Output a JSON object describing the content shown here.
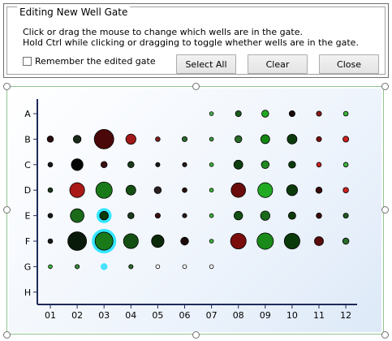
{
  "dialog": {
    "title": "Editing New Well Gate",
    "line1": "Click or drag the mouse to change which wells are in the gate.",
    "line2": "Hold Ctrl while clicking or dragging to toggle whether wells are in the gate.",
    "remember_label": "Remember the edited gate",
    "remember_checked": false,
    "select_all_label": "Select All",
    "clear_label": "Clear",
    "close_label": "Close"
  },
  "plate": {
    "rows": [
      "A",
      "B",
      "C",
      "D",
      "E",
      "F",
      "G",
      "H"
    ],
    "cols": [
      "01",
      "02",
      "03",
      "04",
      "05",
      "06",
      "07",
      "08",
      "09",
      "10",
      "11",
      "12"
    ]
  },
  "chart_data": {
    "type": "scatter",
    "title": "",
    "xlabel": "",
    "ylabel": "",
    "x_categories": [
      "01",
      "02",
      "03",
      "04",
      "05",
      "06",
      "07",
      "08",
      "09",
      "10",
      "11",
      "12"
    ],
    "y_categories": [
      "A",
      "B",
      "C",
      "D",
      "E",
      "F",
      "G",
      "H"
    ],
    "wells": [
      {
        "row": "A",
        "col": "07",
        "size": 1,
        "color": "#4caf50"
      },
      {
        "row": "A",
        "col": "08",
        "size": 1.5,
        "color": "#1e5a1e"
      },
      {
        "row": "A",
        "col": "09",
        "size": 1.8,
        "color": "#22aa22"
      },
      {
        "row": "A",
        "col": "10",
        "size": 1.5,
        "color": "#1a0a0a"
      },
      {
        "row": "A",
        "col": "11",
        "size": 1.3,
        "color": "#8b1a1a"
      },
      {
        "row": "A",
        "col": "12",
        "size": 1.2,
        "color": "#3cb43c"
      },
      {
        "row": "B",
        "col": "01",
        "size": 1.6,
        "color": "#2a0d0d"
      },
      {
        "row": "B",
        "col": "02",
        "size": 2,
        "color": "#1a2a1a"
      },
      {
        "row": "B",
        "col": "03",
        "size": 5,
        "color": "#4a0808"
      },
      {
        "row": "B",
        "col": "04",
        "size": 2.6,
        "color": "#a01818"
      },
      {
        "row": "B",
        "col": "05",
        "size": 1.2,
        "color": "#7a2020"
      },
      {
        "row": "B",
        "col": "06",
        "size": 1.3,
        "color": "#2a6a2a"
      },
      {
        "row": "B",
        "col": "07",
        "size": 1,
        "color": "#3c9a3c"
      },
      {
        "row": "B",
        "col": "08",
        "size": 1.8,
        "color": "#2a6a2a"
      },
      {
        "row": "B",
        "col": "09",
        "size": 2.3,
        "color": "#118811"
      },
      {
        "row": "B",
        "col": "10",
        "size": 2.5,
        "color": "#0c3a0c"
      },
      {
        "row": "B",
        "col": "11",
        "size": 1.3,
        "color": "#7a1010"
      },
      {
        "row": "B",
        "col": "12",
        "size": 1.5,
        "color": "#cc2020"
      },
      {
        "row": "C",
        "col": "01",
        "size": 1.2,
        "color": "#1a1a1a"
      },
      {
        "row": "C",
        "col": "02",
        "size": 3,
        "color": "#050505"
      },
      {
        "row": "C",
        "col": "03",
        "size": 1.6,
        "color": "#3a1010"
      },
      {
        "row": "C",
        "col": "04",
        "size": 1.6,
        "color": "#1a3a1a"
      },
      {
        "row": "C",
        "col": "05",
        "size": 1.1,
        "color": "#1a1a1a"
      },
      {
        "row": "C",
        "col": "06",
        "size": 1.1,
        "color": "#2a1a1a"
      },
      {
        "row": "C",
        "col": "07",
        "size": 1,
        "color": "#3cb43c"
      },
      {
        "row": "C",
        "col": "08",
        "size": 2.3,
        "color": "#104010"
      },
      {
        "row": "C",
        "col": "09",
        "size": 2,
        "color": "#228822"
      },
      {
        "row": "C",
        "col": "10",
        "size": 1.8,
        "color": "#0c3a0c"
      },
      {
        "row": "C",
        "col": "11",
        "size": 1.2,
        "color": "#cc2020"
      },
      {
        "row": "C",
        "col": "12",
        "size": 1.2,
        "color": "#3cb43c"
      },
      {
        "row": "D",
        "col": "01",
        "size": 1.2,
        "color": "#1a3a1a"
      },
      {
        "row": "D",
        "col": "02",
        "size": 3.8,
        "color": "#aa1818"
      },
      {
        "row": "D",
        "col": "03",
        "size": 4.2,
        "color": "#1a7a1a"
      },
      {
        "row": "D",
        "col": "04",
        "size": 2.5,
        "color": "#145014"
      },
      {
        "row": "D",
        "col": "05",
        "size": 1.8,
        "color": "#2a2020"
      },
      {
        "row": "D",
        "col": "06",
        "size": 1.2,
        "color": "#2a1010"
      },
      {
        "row": "D",
        "col": "07",
        "size": 1,
        "color": "#3cb43c"
      },
      {
        "row": "D",
        "col": "08",
        "size": 3.7,
        "color": "#6a0c0c"
      },
      {
        "row": "D",
        "col": "09",
        "size": 3.8,
        "color": "#22aa22"
      },
      {
        "row": "D",
        "col": "10",
        "size": 2.8,
        "color": "#0c3a0c"
      },
      {
        "row": "D",
        "col": "11",
        "size": 1.6,
        "color": "#3a0a0a"
      },
      {
        "row": "D",
        "col": "12",
        "size": 1.4,
        "color": "#cc2020"
      },
      {
        "row": "E",
        "col": "01",
        "size": 1.2,
        "color": "#1a1a1a"
      },
      {
        "row": "E",
        "col": "02",
        "size": 3.5,
        "color": "#1a6a1a"
      },
      {
        "row": "E",
        "col": "03",
        "size": 2.2,
        "color": "#0a3a0a",
        "ring": true
      },
      {
        "row": "E",
        "col": "04",
        "size": 1.6,
        "color": "#1a3a1a"
      },
      {
        "row": "E",
        "col": "05",
        "size": 1.3,
        "color": "#3a1010"
      },
      {
        "row": "E",
        "col": "06",
        "size": 1.1,
        "color": "#2a1a1a"
      },
      {
        "row": "E",
        "col": "07",
        "size": 1,
        "color": "#3cb43c"
      },
      {
        "row": "E",
        "col": "08",
        "size": 2.2,
        "color": "#145014"
      },
      {
        "row": "E",
        "col": "09",
        "size": 2.4,
        "color": "#1a6a1a"
      },
      {
        "row": "E",
        "col": "10",
        "size": 1.9,
        "color": "#0c3a0c"
      },
      {
        "row": "E",
        "col": "11",
        "size": 1.4,
        "color": "#3a0a0a"
      },
      {
        "row": "E",
        "col": "12",
        "size": 1.3,
        "color": "#1e5a1e"
      },
      {
        "row": "F",
        "col": "01",
        "size": 1.2,
        "color": "#1a1a1a"
      },
      {
        "row": "F",
        "col": "02",
        "size": 4.8,
        "color": "#0a1a0a"
      },
      {
        "row": "F",
        "col": "03",
        "size": 4.6,
        "color": "#1a7a1a",
        "ring": true
      },
      {
        "row": "F",
        "col": "04",
        "size": 3.8,
        "color": "#145014"
      },
      {
        "row": "F",
        "col": "05",
        "size": 3.2,
        "color": "#0a2a0a"
      },
      {
        "row": "F",
        "col": "06",
        "size": 2,
        "color": "#1a0a0a"
      },
      {
        "row": "F",
        "col": "07",
        "size": 1,
        "color": "#3cb43c"
      },
      {
        "row": "F",
        "col": "08",
        "size": 4,
        "color": "#7a0c0c"
      },
      {
        "row": "F",
        "col": "09",
        "size": 4.2,
        "color": "#1a8a1a"
      },
      {
        "row": "F",
        "col": "10",
        "size": 4,
        "color": "#0a3a0a"
      },
      {
        "row": "F",
        "col": "11",
        "size": 2.3,
        "color": "#5a0c0c"
      },
      {
        "row": "F",
        "col": "12",
        "size": 1.6,
        "color": "#2a6a2a"
      },
      {
        "row": "G",
        "col": "01",
        "size": 1,
        "color": "#3cb43c"
      },
      {
        "row": "G",
        "col": "02",
        "size": 1.1,
        "color": "#3a8a3a"
      },
      {
        "row": "G",
        "col": "03",
        "size": 1.1,
        "color": "#55ddff",
        "ring_only": true
      },
      {
        "row": "G",
        "col": "04",
        "size": 1.1,
        "color": "#2a6a2a"
      },
      {
        "row": "G",
        "col": "05",
        "size": 1,
        "color": "#ffffff"
      },
      {
        "row": "G",
        "col": "06",
        "size": 1,
        "color": "#ffffff"
      },
      {
        "row": "G",
        "col": "07",
        "size": 1,
        "color": "#ffffff"
      }
    ]
  }
}
